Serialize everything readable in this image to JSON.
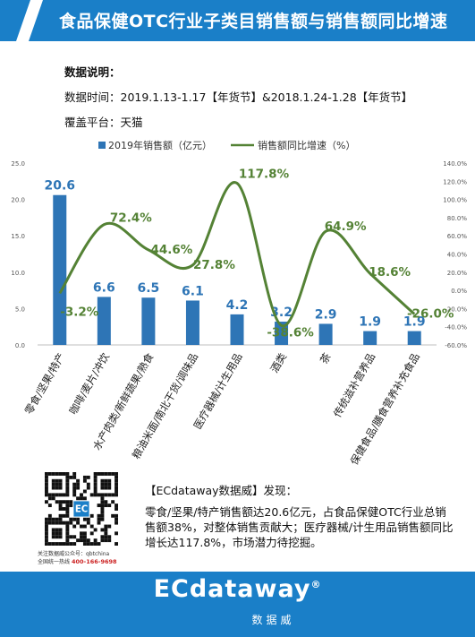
{
  "header": {
    "title": "食品保健OTC行业子类目销售额与销售额同比增速"
  },
  "notes": {
    "label": "数据说明：",
    "time": "数据时间：2019.1.13-1.17【年货节】&2018.1.24-1.28【年货节】",
    "platform": "覆盖平台：天猫"
  },
  "chart_data": {
    "type": "bar",
    "categories": [
      "零食/坚果/特产",
      "咖啡/麦片/冲饮",
      "水产肉类/新鲜蔬果/熟食",
      "粮油米面/南北干货/调味品",
      "医疗器械/计生用品",
      "酒类",
      "茶",
      "传统滋补营养品",
      "保健食品/膳食营养补充食品"
    ],
    "series": [
      {
        "name": "2019年销售额（亿元）",
        "type": "bar",
        "axis": "left",
        "values": [
          20.6,
          6.6,
          6.5,
          6.1,
          4.2,
          3.2,
          2.9,
          1.9,
          1.9
        ],
        "labels": [
          "20.6",
          "6.6",
          "6.5",
          "6.1",
          "4.2",
          "3.2",
          "2.9",
          "1.9",
          "1.9"
        ]
      },
      {
        "name": "销售额同比增速（%）",
        "type": "line",
        "axis": "right",
        "values": [
          -3.2,
          72.4,
          44.6,
          27.8,
          117.8,
          -38.6,
          64.9,
          18.6,
          -26.0
        ],
        "labels": [
          "-3.2%",
          "72.4%",
          "44.6%",
          "27.8%",
          "117.8%",
          "-38.6%",
          "64.9%",
          "18.6%",
          "-26.0%"
        ]
      }
    ],
    "y_left": {
      "range": [
        0,
        25
      ],
      "ticks": [
        "0.0",
        "5.0",
        "10.0",
        "15.0",
        "20.0",
        "25.0"
      ]
    },
    "y_right": {
      "range": [
        -60,
        140
      ],
      "ticks": [
        "-60.0%",
        "-40.0%",
        "-20.0%",
        "0.0%",
        "20.0%",
        "40.0%",
        "60.0%",
        "80.0%",
        "100.0%",
        "120.0%",
        "140.0%"
      ]
    },
    "legend_position": "top",
    "colors": {
      "bar": "#2e75b6",
      "line": "#548235",
      "label_bar": "#2e75b6",
      "label_line": "#548235"
    },
    "grid": false
  },
  "qr": {
    "caption1": "关注数据威公众号：qbtchina",
    "caption2_prefix": "全国统一热线",
    "caption2_phone": "400-166-9698",
    "logo_text": "EC"
  },
  "finding": {
    "title": "【ECdataway数据威】发现：",
    "text": "零食/坚果/特产销售额达20.6亿元，占食品保健OTC行业总销售额38%，对整体销售贡献大；医疗器械/计生用品销售额同比增长达117.8%，市场潜力待挖掘。"
  },
  "footer": {
    "brand": "ECdataway",
    "brand_symbol": "®",
    "brand_cn": "数据威"
  }
}
